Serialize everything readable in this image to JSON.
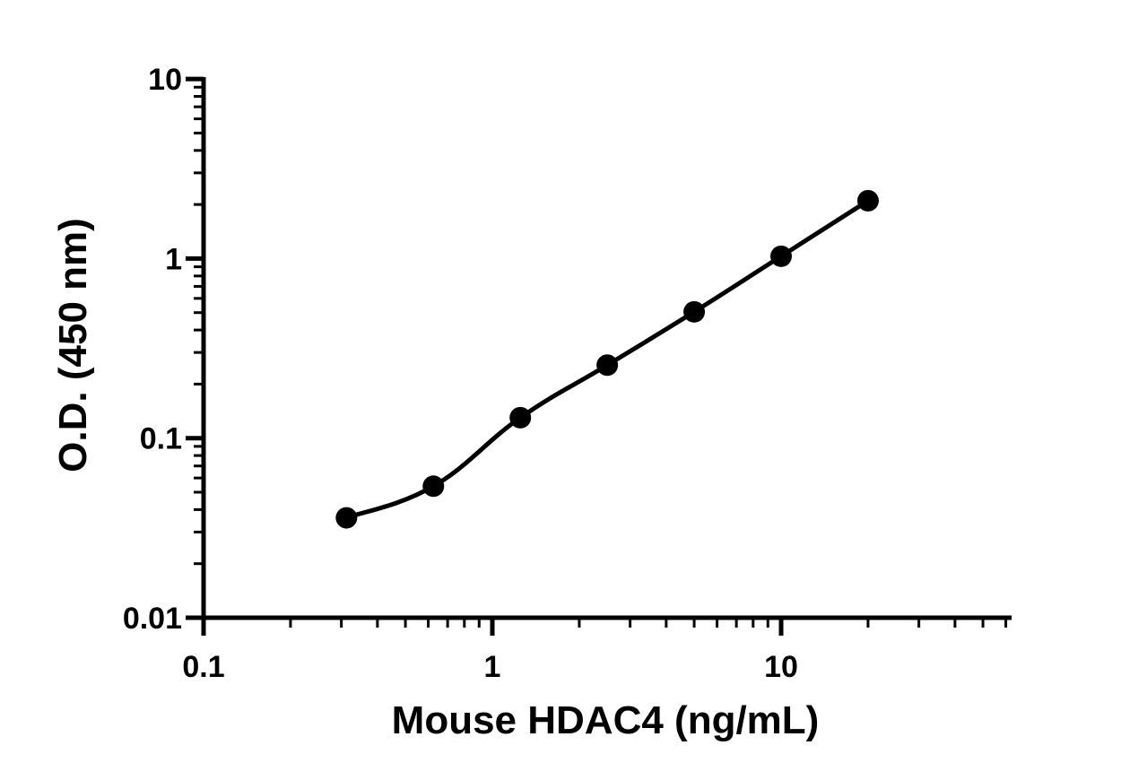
{
  "chart_data": {
    "type": "scatter",
    "title": "",
    "xlabel": "Mouse HDAC4 (ng/mL)",
    "ylabel": "O.D. (450 nm)",
    "x_scale": "log",
    "y_scale": "log",
    "xlim": [
      0.1,
      60
    ],
    "ylim": [
      0.01,
      10
    ],
    "x_ticks": [
      {
        "value": 0.1,
        "label": "0.1"
      },
      {
        "value": 1,
        "label": "1"
      },
      {
        "value": 10,
        "label": "10"
      }
    ],
    "y_ticks": [
      {
        "value": 0.01,
        "label": "0.01"
      },
      {
        "value": 0.1,
        "label": "0.1"
      },
      {
        "value": 1,
        "label": "1"
      },
      {
        "value": 10,
        "label": "10"
      }
    ],
    "grid": false,
    "legend": "none",
    "colors": {
      "points": "#000000",
      "curve": "#000000",
      "axes": "#000000"
    },
    "series": [
      {
        "name": "",
        "x": [
          0.3125,
          0.625,
          1.25,
          2.5,
          5,
          10,
          20
        ],
        "y": [
          0.036,
          0.054,
          0.13,
          0.255,
          0.505,
          1.03,
          2.1
        ],
        "fit_line": true
      }
    ]
  }
}
